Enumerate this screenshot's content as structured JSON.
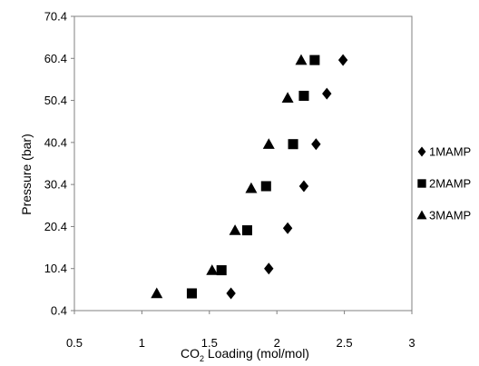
{
  "chart_data": {
    "type": "scatter",
    "title": "",
    "xlabel": {
      "prefix": "CO",
      "subscript": "2",
      "suffix": " Loading (mol/mol)"
    },
    "ylabel": "Pressure (bar)",
    "xlim": [
      0.5,
      3
    ],
    "ylim": [
      0.4,
      70.4
    ],
    "x_ticks": [
      0.5,
      1,
      1.5,
      2,
      2.5,
      3
    ],
    "x_tick_labels": [
      "0.5",
      "1",
      "1.5",
      "2",
      "2.5",
      "3"
    ],
    "y_ticks": [
      0.4,
      10.4,
      20.4,
      30.4,
      40.4,
      50.4,
      60.4,
      70.4
    ],
    "y_tick_labels": [
      "0.4",
      "10.4",
      "20.4",
      "30.4",
      "40.4",
      "50.4",
      "60.4",
      "70.4"
    ],
    "grid": false,
    "legend_position": "right",
    "series": [
      {
        "name": "1MAMP",
        "marker": "diamond",
        "color": "#000000",
        "points": [
          [
            1.66,
            4.5
          ],
          [
            1.94,
            10.4
          ],
          [
            2.08,
            20.0
          ],
          [
            2.2,
            30.0
          ],
          [
            2.29,
            40.0
          ],
          [
            2.37,
            52.0
          ],
          [
            2.49,
            60.0
          ]
        ]
      },
      {
        "name": "2MAMP",
        "marker": "square",
        "color": "#000000",
        "points": [
          [
            1.37,
            4.5
          ],
          [
            1.59,
            10.0
          ],
          [
            1.78,
            19.5
          ],
          [
            1.92,
            30.0
          ],
          [
            2.12,
            40.0
          ],
          [
            2.2,
            51.5
          ],
          [
            2.28,
            60.0
          ]
        ]
      },
      {
        "name": "3MAMP",
        "marker": "triangle",
        "color": "#000000",
        "points": [
          [
            1.11,
            4.5
          ],
          [
            1.52,
            10.0
          ],
          [
            1.69,
            19.5
          ],
          [
            1.81,
            29.5
          ],
          [
            1.94,
            40.0
          ],
          [
            2.08,
            51.0
          ],
          [
            2.18,
            60.0
          ]
        ]
      }
    ]
  }
}
